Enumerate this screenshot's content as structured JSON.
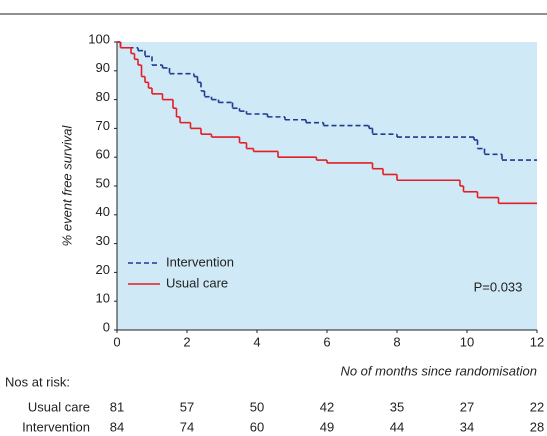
{
  "chart_data": {
    "type": "step",
    "ylabel": "% event free survival",
    "xlabel": "No of months since randomisation",
    "xlim": [
      0,
      12
    ],
    "ylim": [
      0,
      100
    ],
    "xticks": [
      0,
      2,
      4,
      6,
      8,
      10,
      12
    ],
    "yticks": [
      0,
      10,
      20,
      30,
      40,
      50,
      60,
      70,
      80,
      90,
      100
    ],
    "grid": false,
    "series": [
      {
        "name": "Intervention",
        "color": "#1f3a8f",
        "dashed": true,
        "x": [
          0,
          0.1,
          0.6,
          0.8,
          1.0,
          1.3,
          1.5,
          2.2,
          2.3,
          2.4,
          2.5,
          2.7,
          2.9,
          3.3,
          3.5,
          3.7,
          4.3,
          4.8,
          5.4,
          5.9,
          7.2,
          7.3,
          8.0,
          10.2,
          10.3,
          10.5,
          11.0
        ],
        "values": [
          100,
          98,
          97,
          95,
          92,
          91,
          89,
          88,
          86,
          83,
          81,
          80,
          79,
          77,
          76,
          75,
          74,
          73,
          72,
          71,
          70,
          68,
          67,
          66,
          63,
          61,
          59
        ]
      },
      {
        "name": "Usual care",
        "color": "#e31e24",
        "dashed": false,
        "x": [
          0,
          0.1,
          0.4,
          0.5,
          0.6,
          0.7,
          0.8,
          0.9,
          1.0,
          1.3,
          1.6,
          1.7,
          1.8,
          2.1,
          2.4,
          2.7,
          3.5,
          3.7,
          3.9,
          4.6,
          5.7,
          6.0,
          7.3,
          7.6,
          8.0,
          9.8,
          9.9,
          10.3,
          10.9
        ],
        "values": [
          100,
          98,
          96,
          94,
          92,
          88,
          86,
          84,
          82,
          80,
          77,
          74,
          72,
          70,
          68,
          67,
          65,
          63,
          62,
          60,
          59,
          58,
          56,
          54,
          52,
          50,
          48,
          46,
          44
        ]
      }
    ],
    "annotation": "P=0.033",
    "risk_table": {
      "title": "Nos at risk:",
      "rows": [
        {
          "name": "Usual care",
          "values": [
            81,
            57,
            50,
            42,
            35,
            27,
            22
          ]
        },
        {
          "name": "Intervention",
          "values": [
            84,
            74,
            60,
            49,
            44,
            34,
            28
          ]
        }
      ]
    }
  }
}
